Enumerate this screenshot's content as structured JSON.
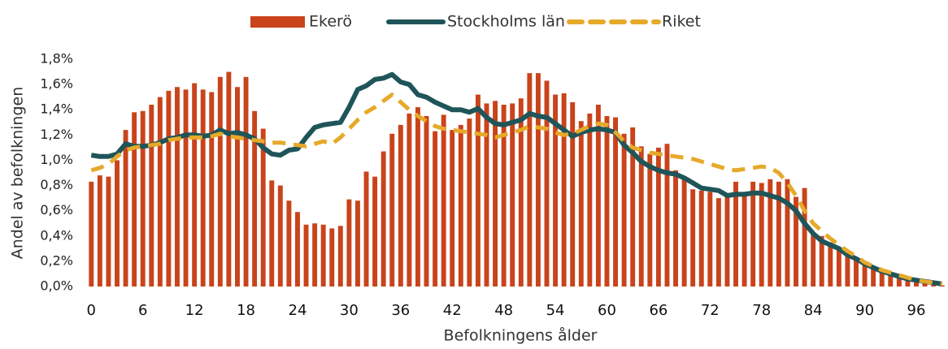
{
  "chart_data": {
    "type": "bar",
    "x_label": "Befolkningens ålder",
    "y_label": "Andel av befolkningen",
    "legend": "top",
    "categories": [
      "0",
      null,
      null,
      null,
      null,
      null,
      "6",
      null,
      null,
      null,
      null,
      null,
      "12",
      null,
      null,
      null,
      null,
      null,
      "18",
      null,
      null,
      null,
      null,
      null,
      "24",
      null,
      null,
      null,
      null,
      null,
      "30",
      null,
      null,
      null,
      null,
      null,
      "36",
      null,
      null,
      null,
      null,
      null,
      "42",
      null,
      null,
      null,
      null,
      null,
      "48",
      null,
      null,
      null,
      null,
      null,
      "54",
      null,
      null,
      null,
      null,
      null,
      "60",
      null,
      null,
      null,
      null,
      null,
      "66",
      null,
      null,
      null,
      null,
      null,
      "72",
      null,
      null,
      null,
      null,
      null,
      "78",
      null,
      null,
      null,
      null,
      null,
      "84",
      null,
      null,
      null,
      null,
      null,
      "90",
      null,
      null,
      null,
      null,
      null,
      "96",
      null,
      null,
      null
    ],
    "ylim": [
      0,
      1.8
    ],
    "yticks": [
      {
        "value": 0,
        "label": "0,0%"
      },
      {
        "value": 0.2,
        "label": "0,2%"
      },
      {
        "value": 0.4,
        "label": "0,4%"
      },
      {
        "value": 0.6,
        "label": "0,6%"
      },
      {
        "value": 0.8,
        "label": "0,8%"
      },
      {
        "value": 1.0,
        "label": "1,0%"
      },
      {
        "value": 1.2,
        "label": "1,2%"
      },
      {
        "value": 1.4,
        "label": "1,4%"
      },
      {
        "value": 1.6,
        "label": "1,6%"
      },
      {
        "value": 1.8,
        "label": "1,8%"
      }
    ],
    "series": [
      {
        "name": "Ekerö",
        "type": "bar",
        "color": "#c9431b",
        "values": [
          0.83,
          0.88,
          0.87,
          1.0,
          1.24,
          1.38,
          1.39,
          1.44,
          1.5,
          1.55,
          1.58,
          1.56,
          1.61,
          1.56,
          1.54,
          1.66,
          1.7,
          1.58,
          1.66,
          1.39,
          1.25,
          0.84,
          0.8,
          0.68,
          0.59,
          0.49,
          0.5,
          0.49,
          0.46,
          0.48,
          0.69,
          0.68,
          0.91,
          0.87,
          1.07,
          1.21,
          1.28,
          1.37,
          1.42,
          1.35,
          1.23,
          1.36,
          1.24,
          1.28,
          1.33,
          1.52,
          1.45,
          1.47,
          1.44,
          1.45,
          1.49,
          1.69,
          1.69,
          1.63,
          1.52,
          1.53,
          1.46,
          1.31,
          1.37,
          1.44,
          1.35,
          1.34,
          1.21,
          1.26,
          1.11,
          1.05,
          1.1,
          1.13,
          0.92,
          0.85,
          0.77,
          0.76,
          0.75,
          0.7,
          0.72,
          0.83,
          0.72,
          0.83,
          0.82,
          0.85,
          0.83,
          0.85,
          0.71,
          0.78,
          0.42,
          0.4,
          0.35,
          0.31,
          0.27,
          0.22,
          0.18,
          0.14,
          0.12,
          0.1,
          0.08,
          0.06,
          0.04,
          0.03,
          0.02,
          0.01
        ]
      },
      {
        "name": "Stockholms län",
        "type": "line",
        "color": "#1f5559",
        "values": [
          1.04,
          1.03,
          1.03,
          1.05,
          1.13,
          1.11,
          1.11,
          1.12,
          1.14,
          1.17,
          1.18,
          1.2,
          1.2,
          1.19,
          1.2,
          1.24,
          1.21,
          1.22,
          1.2,
          1.17,
          1.1,
          1.05,
          1.04,
          1.08,
          1.09,
          1.18,
          1.26,
          1.28,
          1.29,
          1.3,
          1.42,
          1.56,
          1.59,
          1.64,
          1.65,
          1.68,
          1.62,
          1.6,
          1.52,
          1.5,
          1.46,
          1.43,
          1.4,
          1.4,
          1.38,
          1.41,
          1.34,
          1.29,
          1.28,
          1.3,
          1.32,
          1.37,
          1.35,
          1.34,
          1.29,
          1.24,
          1.19,
          1.22,
          1.24,
          1.25,
          1.24,
          1.22,
          1.12,
          1.06,
          0.99,
          0.95,
          0.92,
          0.9,
          0.89,
          0.86,
          0.82,
          0.78,
          0.77,
          0.76,
          0.72,
          0.73,
          0.73,
          0.74,
          0.74,
          0.72,
          0.7,
          0.66,
          0.6,
          0.5,
          0.42,
          0.36,
          0.33,
          0.3,
          0.25,
          0.22,
          0.18,
          0.15,
          0.12,
          0.1,
          0.08,
          0.06,
          0.05,
          0.04,
          0.03,
          0.02
        ]
      },
      {
        "name": "Riket",
        "type": "line",
        "dashed": true,
        "color": "#e6a92a",
        "values": [
          0.92,
          0.94,
          0.97,
          1.03,
          1.08,
          1.1,
          1.11,
          1.12,
          1.13,
          1.16,
          1.17,
          1.18,
          1.18,
          1.18,
          1.19,
          1.21,
          1.19,
          1.18,
          1.17,
          1.16,
          1.15,
          1.14,
          1.14,
          1.13,
          1.12,
          1.11,
          1.13,
          1.15,
          1.13,
          1.18,
          1.25,
          1.32,
          1.38,
          1.42,
          1.47,
          1.52,
          1.46,
          1.4,
          1.35,
          1.31,
          1.27,
          1.25,
          1.24,
          1.23,
          1.22,
          1.21,
          1.2,
          1.18,
          1.2,
          1.22,
          1.24,
          1.27,
          1.26,
          1.25,
          1.22,
          1.2,
          1.21,
          1.24,
          1.27,
          1.29,
          1.28,
          1.22,
          1.15,
          1.1,
          1.08,
          1.06,
          1.05,
          1.04,
          1.03,
          1.02,
          1.01,
          0.99,
          0.97,
          0.95,
          0.93,
          0.92,
          0.93,
          0.94,
          0.95,
          0.94,
          0.9,
          0.82,
          0.72,
          0.6,
          0.5,
          0.44,
          0.38,
          0.33,
          0.28,
          0.24,
          0.19,
          0.16,
          0.13,
          0.11,
          0.09,
          0.07,
          0.05,
          0.04,
          0.03,
          0.02
        ]
      }
    ]
  }
}
